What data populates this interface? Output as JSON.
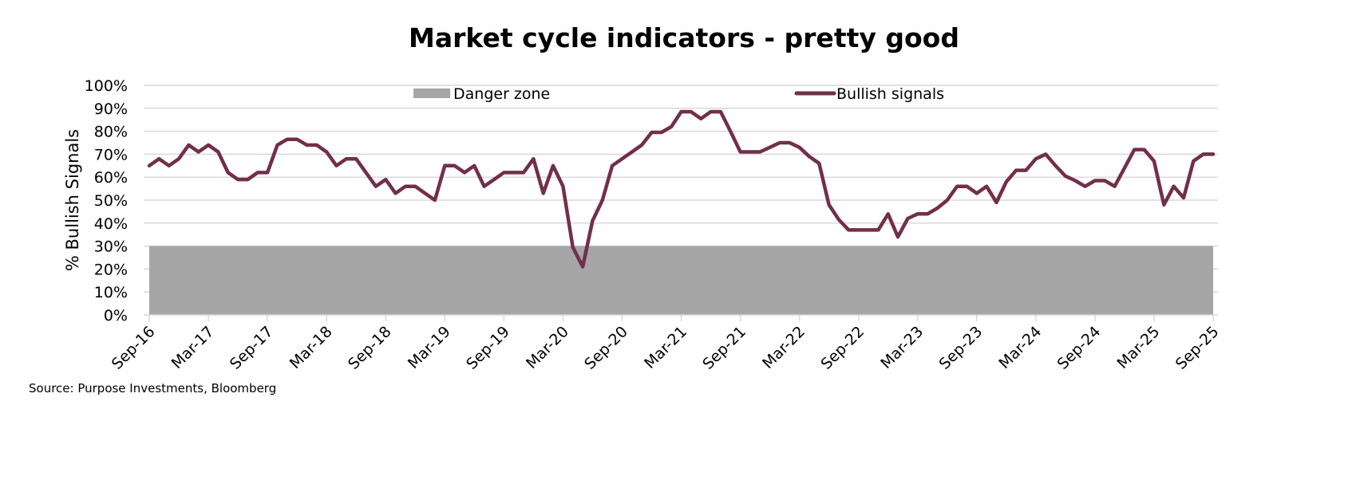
{
  "chart_data": {
    "type": "line",
    "title": "Market cycle indicators - pretty good",
    "xlabel": "",
    "ylabel": "% Bullish Signals",
    "ylim": [
      0,
      100
    ],
    "yticks": [
      "0%",
      "10%",
      "20%",
      "30%",
      "40%",
      "50%",
      "60%",
      "70%",
      "80%",
      "90%",
      "100%"
    ],
    "xticks": [
      "Sep-16",
      "Mar-17",
      "Sep-17",
      "Mar-18",
      "Sep-18",
      "Mar-19",
      "Sep-19",
      "Mar-20",
      "Sep-20",
      "Mar-21",
      "Sep-21",
      "Mar-22",
      "Sep-22",
      "Mar-23",
      "Sep-23",
      "Mar-24",
      "Sep-24",
      "Mar-25",
      "Sep-25"
    ],
    "x_start": "Sep-16",
    "x_frequency": "monthly",
    "grid": true,
    "legend": {
      "placement": "top",
      "entries": [
        "Danger zone",
        "Bullish signals"
      ]
    },
    "danger_zone": {
      "name": "Danger zone",
      "from": 0,
      "to": 30,
      "color": "#a6a6a6"
    },
    "series": [
      {
        "name": "Bullish signals",
        "color": "#722f4a",
        "values": [
          65,
          68,
          65,
          68,
          74,
          71,
          74,
          71,
          62,
          59,
          59,
          62,
          62,
          74,
          76.5,
          76.5,
          74,
          74,
          71,
          65,
          68,
          68,
          62,
          56,
          59,
          53,
          56,
          56,
          53,
          50,
          65,
          65,
          62,
          65,
          56,
          59,
          62,
          62,
          62,
          68,
          53,
          65,
          56,
          29.5,
          21,
          41,
          50,
          65,
          68,
          71,
          74,
          79.5,
          79.5,
          82,
          88.5,
          88.5,
          85.5,
          88.5,
          88.5,
          80,
          71,
          71,
          71,
          73,
          75,
          75,
          73,
          69,
          66,
          48,
          41.5,
          37,
          37,
          37,
          37,
          44,
          34,
          42,
          44,
          44,
          46.5,
          50,
          56,
          56,
          53,
          56,
          49,
          58,
          63,
          63,
          68,
          70,
          65,
          60.5,
          58.5,
          56,
          58.5,
          58.5,
          56,
          64,
          72,
          72,
          67,
          48,
          56,
          51,
          67,
          70,
          70
        ]
      }
    ],
    "source": "Source: Purpose Investments, Bloomberg"
  }
}
